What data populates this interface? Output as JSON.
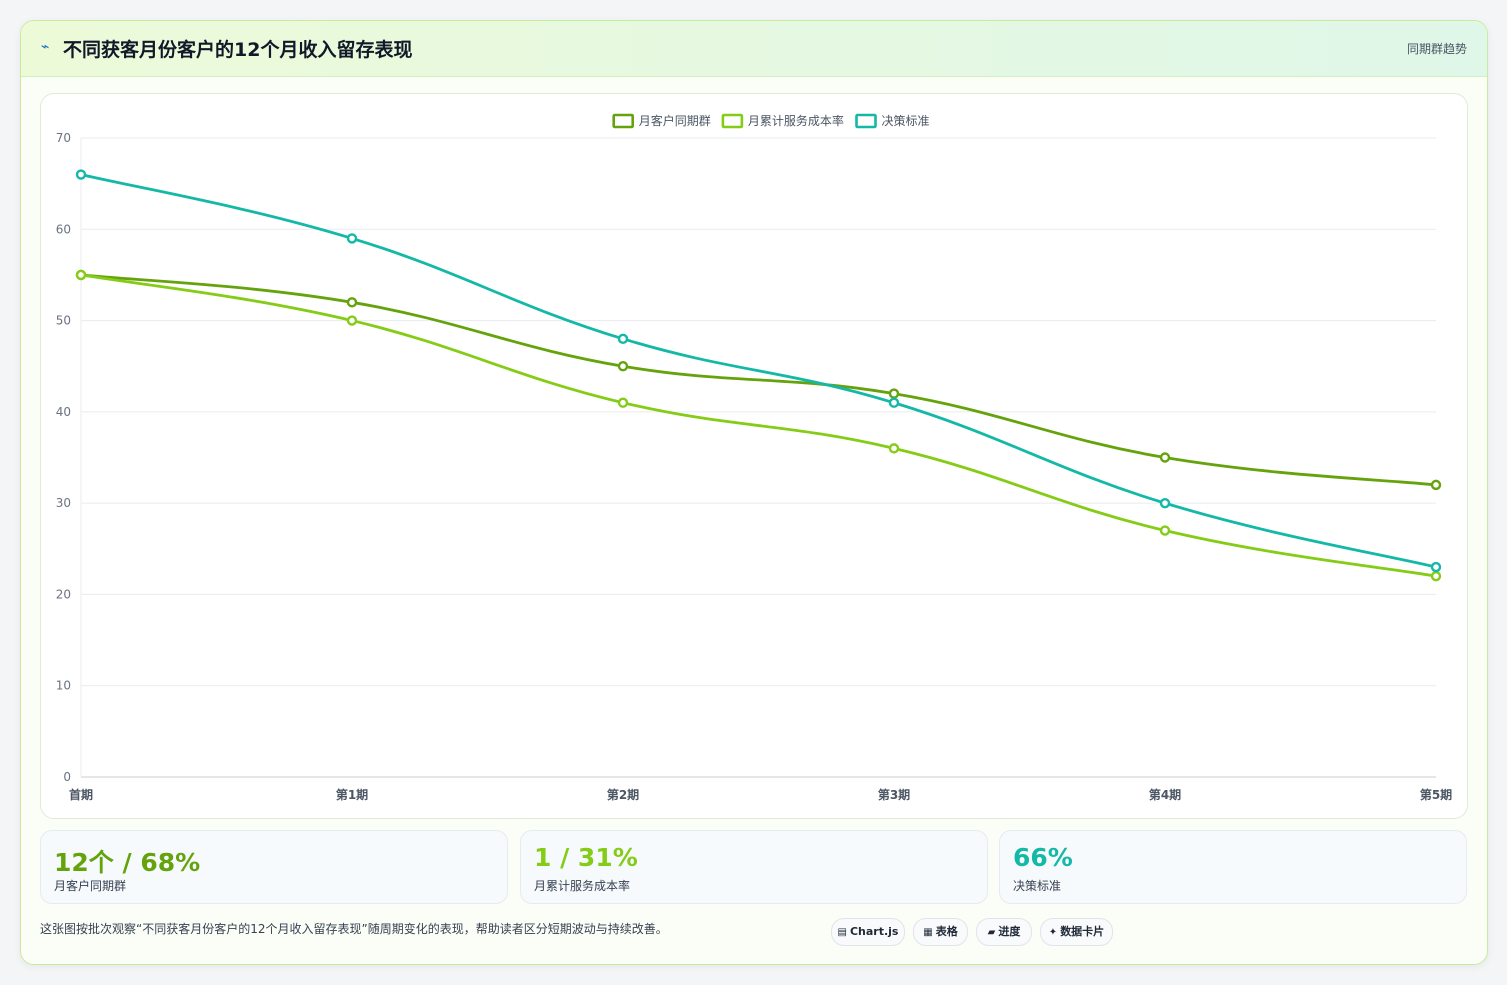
{
  "header": {
    "icon": "trend-icon",
    "title": "不同获客月份客户的12个月收入留存表现",
    "tag": "同期群趋势"
  },
  "chart_data": {
    "type": "line",
    "categories": [
      "首期",
      "第1期",
      "第2期",
      "第3期",
      "第4期",
      "第5期"
    ],
    "series": [
      {
        "name": "月客户同期群",
        "color": "#65a30d",
        "values": [
          55,
          52,
          45,
          42,
          35,
          32
        ]
      },
      {
        "name": "月累计服务成本率",
        "color": "#84cc16",
        "values": [
          55,
          50,
          41,
          36,
          27,
          22
        ]
      },
      {
        "name": "决策标准",
        "color": "#14b8a6",
        "values": [
          66,
          59,
          48,
          41,
          30,
          23
        ]
      }
    ],
    "ylim": [
      0,
      70
    ],
    "yticks": [
      "0",
      "10",
      "20",
      "30",
      "40",
      "50",
      "60",
      "70"
    ],
    "legend_position": "top-center",
    "grid": true
  },
  "kpis": [
    {
      "value": "12个 / 68%",
      "label": "月客户同期群",
      "color": "#65a30d"
    },
    {
      "value": "1 / 31%",
      "label": "月累计服务成本率",
      "color": "#84cc16"
    },
    {
      "value": "66%",
      "label": "决策标准",
      "color": "#14b8a6"
    }
  ],
  "footnote": "这张图按批次观察“不同获客月份客户的12个月收入留存表现”随周期变化的表现，帮助读者区分短期波动与持续改善。",
  "pills": [
    {
      "icon": "▤",
      "label": "Chart.js"
    },
    {
      "icon": "▦",
      "label": "表格"
    },
    {
      "icon": "▰",
      "label": "进度"
    },
    {
      "icon": "✦",
      "label": "数据卡片"
    }
  ]
}
